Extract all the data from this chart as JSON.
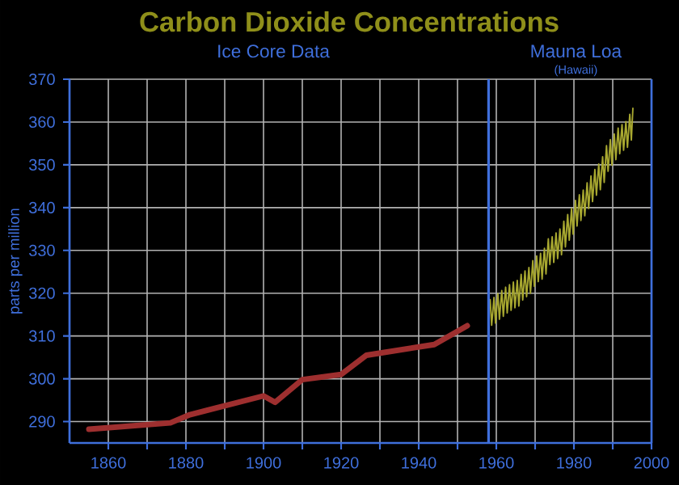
{
  "chart_data": {
    "type": "line",
    "title": "Carbon Dioxide Concentrations",
    "ylabel": "parts per million",
    "annotations": [
      "Ice Core Data",
      "Mauna Loa",
      "(Hawaii)"
    ],
    "series": [
      {
        "color": "#9e2f2f",
        "x": [
          1855,
          1876,
          1881,
          1900,
          1903,
          1910,
          1920,
          1926.5,
          1944,
          1952.5
        ],
        "values": [
          288.2,
          289.7,
          291.6,
          296,
          294.5,
          299.8,
          301,
          305.5,
          308,
          312.4
        ]
      },
      {
        "color": "#a8a830",
        "x": [
          1958.4,
          1958.8,
          1959.4,
          1959.8,
          1960.4,
          1960.8,
          1961.4,
          1961.8,
          1962.4,
          1962.8,
          1963.4,
          1963.8,
          1964.4,
          1964.8,
          1965.4,
          1965.8,
          1966.4,
          1966.8,
          1967.4,
          1967.8,
          1968.4,
          1968.8,
          1969.4,
          1969.8,
          1970.4,
          1970.8,
          1971.4,
          1971.8,
          1972.4,
          1972.8,
          1973.4,
          1973.8,
          1974.4,
          1974.8,
          1975.4,
          1975.8,
          1976.4,
          1976.8,
          1977.4,
          1977.8,
          1978.4,
          1978.8,
          1979.4,
          1979.8,
          1980.4,
          1980.8,
          1981.4,
          1981.8,
          1982.4,
          1982.8,
          1983.4,
          1983.8,
          1984.4,
          1984.8,
          1985.4,
          1985.8,
          1986.4,
          1986.8,
          1987.4,
          1987.8,
          1988.4,
          1988.8,
          1989.4,
          1989.8,
          1990.4,
          1990.8,
          1991.4,
          1991.8,
          1992.4,
          1992.8,
          1993.4,
          1993.8,
          1994.4,
          1994.8,
          1995.2
        ],
        "values": [
          318.5,
          312.5,
          319.0,
          313.0,
          319.9,
          313.9,
          320.6,
          314.6,
          321.4,
          315.4,
          322.0,
          316.0,
          322.6,
          316.6,
          323.0,
          317.0,
          324.4,
          318.4,
          325.2,
          319.2,
          326.0,
          320.0,
          327.6,
          321.6,
          328.7,
          322.7,
          329.3,
          323.3,
          330.5,
          324.5,
          332.7,
          326.7,
          333.2,
          327.2,
          334.1,
          328.1,
          335.0,
          329.0,
          336.8,
          330.8,
          338.4,
          332.4,
          339.8,
          333.8,
          341.7,
          335.7,
          343.0,
          337.0,
          344.1,
          338.1,
          345.8,
          339.8,
          347.4,
          341.4,
          348.9,
          342.9,
          350.2,
          344.2,
          351.9,
          345.9,
          354.5,
          348.5,
          355.9,
          349.9,
          357.2,
          351.2,
          358.6,
          352.6,
          359.4,
          353.4,
          360.1,
          354.1,
          361.8,
          355.8,
          363.2
        ]
      }
    ],
    "ref_lines": [
      {
        "axis": "x",
        "value": 1958,
        "color": "#3f6fdc"
      }
    ],
    "xlim": [
      1850,
      2000
    ],
    "ylim": [
      285,
      370
    ],
    "xticks": [
      1860,
      {
        "value": 1870,
        "label": null
      },
      1880,
      {
        "value": 1890,
        "label": null
      },
      1900,
      {
        "value": 1910,
        "label": null
      },
      1920,
      {
        "value": 1930,
        "label": null
      },
      1940,
      {
        "value": 1950,
        "label": null
      },
      1960,
      {
        "value": 1970,
        "label": null
      },
      1980,
      {
        "value": 1990,
        "label": null
      },
      2000
    ],
    "yticks": [
      290,
      300,
      310,
      320,
      330,
      340,
      350,
      360,
      370
    ],
    "grid": true,
    "marker": "none",
    "line_style": "solid"
  }
}
